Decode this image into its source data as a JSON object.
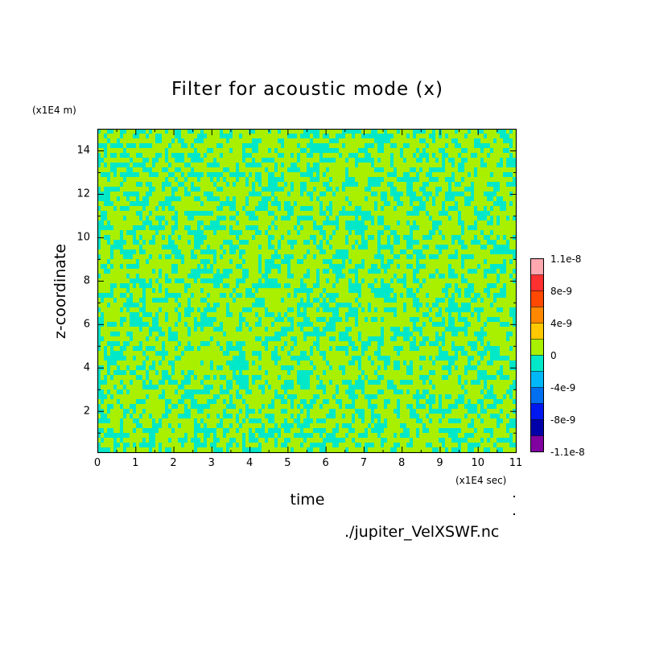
{
  "chart_data": {
    "type": "heatmap",
    "title": "Filter for acoustic mode (x)",
    "xlabel": "time",
    "ylabel": "z-coordinate",
    "x_unit": "(x1E4 sec)",
    "y_unit": "(x1E4 m)",
    "xlim": [
      0,
      11
    ],
    "ylim": [
      0.1,
      15
    ],
    "x_ticks": [
      "0",
      "1",
      "2",
      "3",
      "4",
      "5",
      "6",
      "7",
      "8",
      "9",
      "10",
      "11"
    ],
    "y_ticks": [
      "2",
      "4",
      "6",
      "8",
      "10",
      "12",
      "14"
    ],
    "pattern": "fine-grained noise alternating between the two colour levels nearest 0",
    "dominant_levels": [
      {
        "range": [
          -2e-09,
          0
        ],
        "color": "#00e8c8"
      },
      {
        "range": [
          0,
          2e-09
        ],
        "color": "#a8f000"
      }
    ],
    "colorbar": {
      "levels": [
        {
          "color": "#ffa8b0"
        },
        {
          "color": "#ff3030"
        },
        {
          "color": "#ff4800"
        },
        {
          "color": "#ff8800"
        },
        {
          "color": "#ffc800"
        },
        {
          "color": "#a8f000"
        },
        {
          "color": "#00e8c8"
        },
        {
          "color": "#00b8f8"
        },
        {
          "color": "#0070f0"
        },
        {
          "color": "#0018f0"
        },
        {
          "color": "#0000a8"
        },
        {
          "color": "#8000a0"
        }
      ],
      "labels": [
        "1.1e-8",
        "8e-9",
        "4e-9",
        "0",
        "-4e-9",
        "-8e-9",
        "-1.1e-8"
      ]
    },
    "source": "./jupiter_VelXSWF.nc"
  }
}
